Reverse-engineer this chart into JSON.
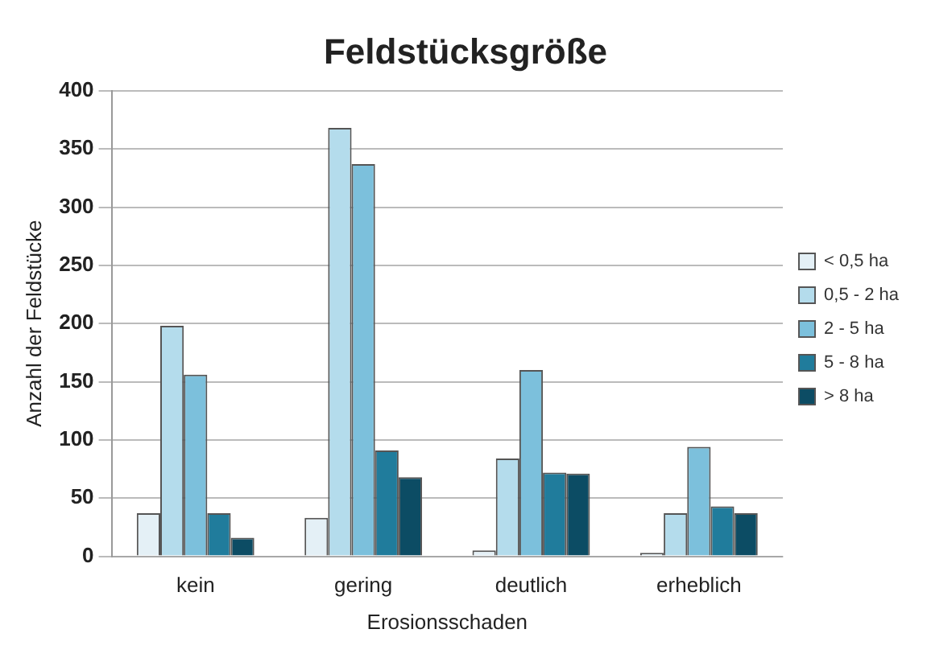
{
  "chart_data": {
    "type": "bar",
    "title": "Feldstücksgröße",
    "xlabel": "Erosionsschaden",
    "ylabel": "Anzahl der Feldstücke",
    "categories": [
      "kein",
      "gering",
      "deutlich",
      "erheblich"
    ],
    "series": [
      {
        "name": "< 0,5 ha",
        "color": "#e4f0f6",
        "values": [
          37,
          33,
          5,
          3
        ]
      },
      {
        "name": "0,5 - 2 ha",
        "color": "#b4dcec",
        "values": [
          198,
          368,
          84,
          37
        ]
      },
      {
        "name": "2 - 5 ha",
        "color": "#7cc0dc",
        "values": [
          156,
          337,
          160,
          94
        ]
      },
      {
        "name": "5 - 8 ha",
        "color": "#207c9c",
        "values": [
          37,
          91,
          72,
          43
        ]
      },
      {
        "name": "> 8 ha",
        "color": "#0c4c64",
        "values": [
          16,
          68,
          71,
          37
        ]
      }
    ],
    "ylim": [
      0,
      400
    ],
    "yticks": [
      0,
      50,
      100,
      150,
      200,
      250,
      300,
      350,
      400
    ],
    "grid": "y",
    "legend": "right"
  }
}
